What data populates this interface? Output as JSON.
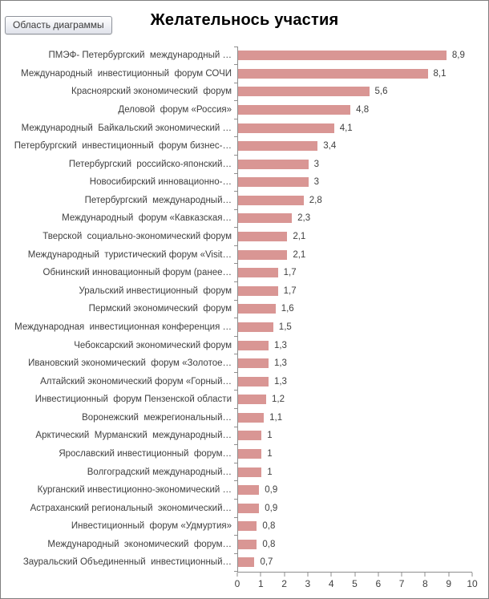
{
  "window": {
    "tooltip_label": "Область диаграммы"
  },
  "chart_data": {
    "type": "bar",
    "orientation": "horizontal",
    "title": "Желательнось участия",
    "categories": [
      "ПМЭФ- Петербургский  международный …",
      "Международный  инвестиционный  форум СОЧИ",
      "Красноярский экономический  форум",
      "Деловой  форум «Россия»",
      "Международный  Байкальский экономический …",
      "Петербургский  инвестиционный  форум бизнес-…",
      "Петербургский  российско-японский…",
      "Новосибирский инновационно-…",
      "Петербургский  международный…",
      "Международный  форум «Кавказская…",
      "Тверской  социально-экономический форум",
      "Международный  туристический форум «Visit…",
      "Обнинский инновационный форум (ранее…",
      "Уральский инвестиционный  форум",
      "Пермский экономический  форум",
      "Международная  инвестиционная конференция …",
      "Чебоксарский экономический форум",
      "Ивановский экономический  форум «Золотое…",
      "Алтайский экономический форум «Горный…",
      "Инвестиционный  форум Пензенской области",
      "Воронежский  межрегиональный…",
      "Арктический  Мурманский  международный…",
      "Ярославский инвестиционный  форум…",
      "Волгоградский международный…",
      "Курганский инвестиционно-экономический …",
      "Астраханский региональный  экономический…",
      "Инвестиционный  форум «Удмуртия»",
      "Международный  экономический  форум…",
      "Зауральский Объединенный  инвестиционный…"
    ],
    "values": [
      8.9,
      8.1,
      5.6,
      4.8,
      4.1,
      3.4,
      3,
      3,
      2.8,
      2.3,
      2.1,
      2.1,
      1.7,
      1.7,
      1.6,
      1.5,
      1.3,
      1.3,
      1.3,
      1.2,
      1.1,
      1,
      1,
      1,
      0.9,
      0.9,
      0.8,
      0.8,
      0.7
    ],
    "value_labels": [
      "8,9",
      "8,1",
      "5,6",
      "4,8",
      "4,1",
      "3,4",
      "3",
      "3",
      "2,8",
      "2,3",
      "2,1",
      "2,1",
      "1,7",
      "1,7",
      "1,6",
      "1,5",
      "1,3",
      "1,3",
      "1,3",
      "1,2",
      "1,1",
      "1",
      "1",
      "1",
      "0,9",
      "0,9",
      "0,8",
      "0,8",
      "0,7"
    ],
    "xlim": [
      0,
      10
    ],
    "x_ticks": [
      "0",
      "1",
      "2",
      "3",
      "4",
      "5",
      "6",
      "7",
      "8",
      "9",
      "10"
    ],
    "bar_color": "#D99694",
    "axis_color": "#8E8E8E",
    "text_color": "#3F3F3F",
    "grid": false,
    "legend": "none",
    "data_labels": true
  }
}
